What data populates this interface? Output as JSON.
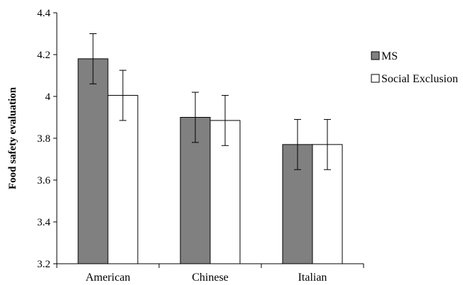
{
  "chart_data": {
    "type": "bar",
    "title": "",
    "xlabel": "",
    "ylabel": "Food safety evaluation",
    "categories": [
      "American",
      "Chinese",
      "Italian"
    ],
    "series": [
      {
        "name": "MS",
        "values": [
          4.18,
          3.9,
          3.77
        ],
        "errors": [
          0.12,
          0.12,
          0.12
        ],
        "color": "#808080"
      },
      {
        "name": "Social Exclusion",
        "values": [
          4.005,
          3.885,
          3.77
        ],
        "errors": [
          0.12,
          0.12,
          0.12
        ],
        "color": "#ffffff"
      }
    ],
    "ylim": [
      3.2,
      4.4
    ],
    "yticks": [
      {
        "value": 3.2,
        "label": "3.2"
      },
      {
        "value": 3.4,
        "label": "3.4"
      },
      {
        "value": 3.6,
        "label": "3.6"
      },
      {
        "value": 3.8,
        "label": "3.8"
      },
      {
        "value": 4.0,
        "label": "4"
      },
      {
        "value": 4.2,
        "label": "4.2"
      },
      {
        "value": 4.4,
        "label": "4.4"
      }
    ],
    "grid": false,
    "legend_position": "right"
  }
}
